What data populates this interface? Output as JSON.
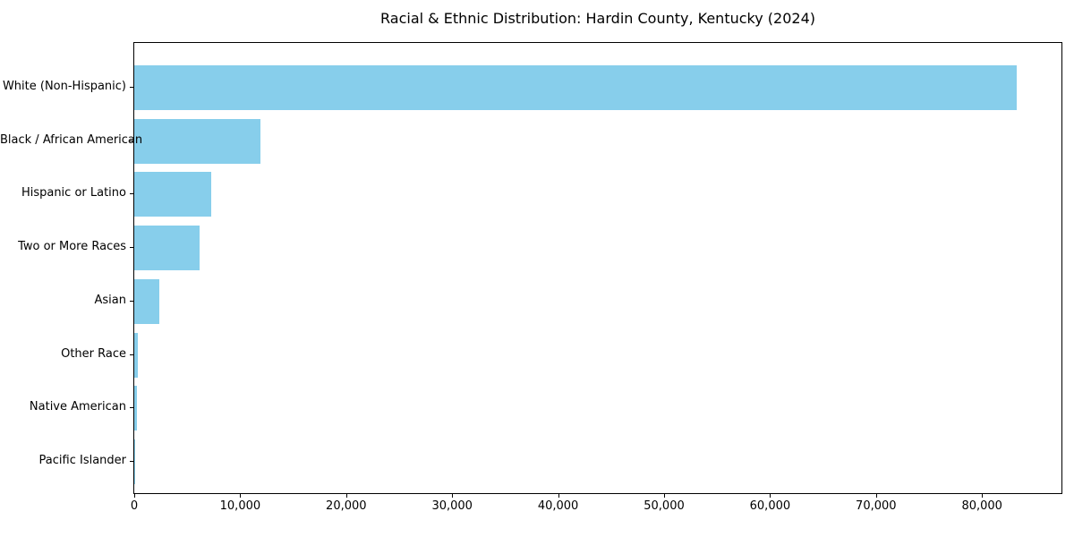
{
  "chart_data": {
    "type": "bar",
    "orientation": "horizontal",
    "title": "Racial & Ethnic Distribution: Hardin County, Kentucky (2024)",
    "categories": [
      "White (Non-Hispanic)",
      "Black / African American",
      "Hispanic or Latino",
      "Two or More Races",
      "Asian",
      "Other Race",
      "Native American",
      "Pacific Islander"
    ],
    "values": [
      83300,
      11900,
      7300,
      6200,
      2400,
      350,
      250,
      100
    ],
    "xlim": [
      0,
      87500
    ],
    "xticks": [
      {
        "value": 0,
        "label": "0"
      },
      {
        "value": 10000,
        "label": "10,000"
      },
      {
        "value": 20000,
        "label": "20,000"
      },
      {
        "value": 30000,
        "label": "30,000"
      },
      {
        "value": 40000,
        "label": "40,000"
      },
      {
        "value": 50000,
        "label": "50,000"
      },
      {
        "value": 60000,
        "label": "60,000"
      },
      {
        "value": 70000,
        "label": "70,000"
      },
      {
        "value": 80000,
        "label": "80,000"
      }
    ],
    "bar_color": "#87ceeb",
    "axis_color": "#000000",
    "text_color": "#000000",
    "grid": false,
    "legend_position": "none",
    "xlabel": "",
    "ylabel": ""
  }
}
